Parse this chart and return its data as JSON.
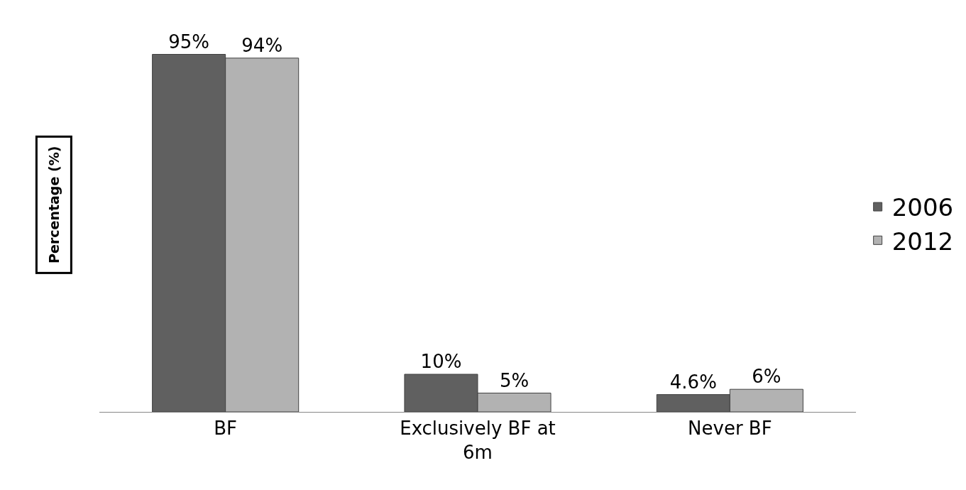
{
  "chart_data": {
    "type": "bar",
    "ylabel": "Percentage (%)",
    "categories": [
      "BF",
      "Exclusively BF at 6m",
      "Never BF"
    ],
    "series": [
      {
        "name": "2006",
        "color": "#606060",
        "values": [
          95,
          10,
          4.6
        ],
        "value_labels": [
          "95%",
          "10%",
          "4.6%"
        ]
      },
      {
        "name": "2012",
        "color": "#b2b2b2",
        "values": [
          94,
          5,
          6
        ],
        "value_labels": [
          "94%",
          "5%",
          "6%"
        ]
      }
    ],
    "legend": "right",
    "grid": false
  }
}
